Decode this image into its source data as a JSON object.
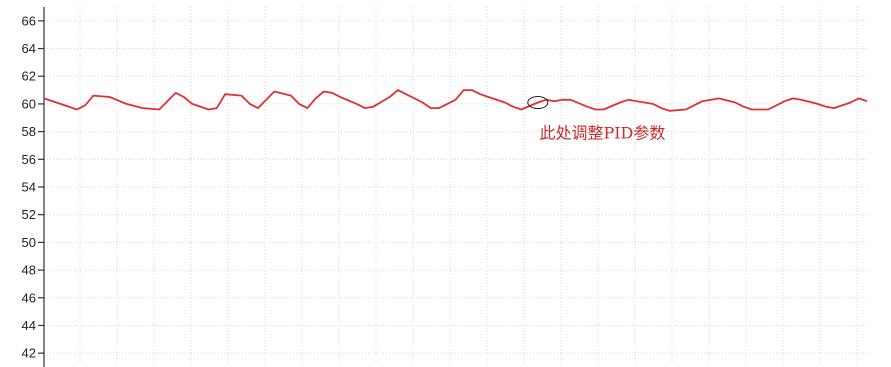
{
  "chart_data": {
    "type": "line",
    "title": "",
    "xlabel": "",
    "ylabel": "",
    "ylim": [
      41,
      67
    ],
    "yticks": [
      42,
      44,
      46,
      48,
      50,
      52,
      54,
      56,
      58,
      60,
      62,
      64,
      66
    ],
    "xlim": [
      0,
      100
    ],
    "grid": true,
    "legend": "none",
    "series": [
      {
        "color": "#e03131",
        "x": [
          0,
          2,
          4,
          5,
          6,
          8,
          10,
          12,
          14,
          15,
          16,
          17,
          18,
          20,
          21,
          22,
          24,
          25,
          26,
          27,
          28,
          30,
          31,
          32,
          33,
          34,
          35,
          36,
          38,
          39,
          40,
          42,
          43,
          44,
          46,
          47,
          48,
          50,
          51,
          52,
          53,
          54,
          56,
          57,
          58,
          60,
          61,
          62,
          63,
          64,
          66,
          67,
          68,
          70,
          71,
          72,
          74,
          75,
          76,
          78,
          79,
          80,
          82,
          84,
          85,
          86,
          88,
          90,
          91,
          92,
          94,
          95,
          96,
          98,
          99,
          100
        ],
        "y": [
          60.4,
          60.0,
          59.6,
          59.9,
          60.6,
          60.5,
          60.0,
          59.7,
          59.6,
          60.2,
          60.8,
          60.5,
          60.0,
          59.6,
          59.7,
          60.7,
          60.6,
          60.0,
          59.7,
          60.3,
          60.9,
          60.6,
          60.0,
          59.7,
          60.4,
          60.9,
          60.8,
          60.5,
          60.0,
          59.7,
          59.8,
          60.5,
          61.0,
          60.7,
          60.1,
          59.7,
          59.7,
          60.3,
          61.0,
          61.0,
          60.7,
          60.5,
          60.1,
          59.8,
          59.6,
          60.1,
          60.3,
          60.2,
          60.3,
          60.3,
          59.8,
          59.6,
          59.6,
          60.1,
          60.3,
          60.2,
          60.0,
          59.7,
          59.5,
          59.6,
          59.9,
          60.2,
          60.4,
          60.1,
          59.8,
          59.6,
          59.6,
          60.2,
          60.4,
          60.3,
          60.0,
          59.8,
          59.7,
          60.1,
          60.4,
          60.2
        ]
      }
    ],
    "annotations": [
      {
        "text": "此处调整PID参数",
        "x": 60,
        "y": 60.1,
        "text_x": 60.2,
        "text_y": 57.5,
        "color": "#c92a2a"
      }
    ]
  }
}
